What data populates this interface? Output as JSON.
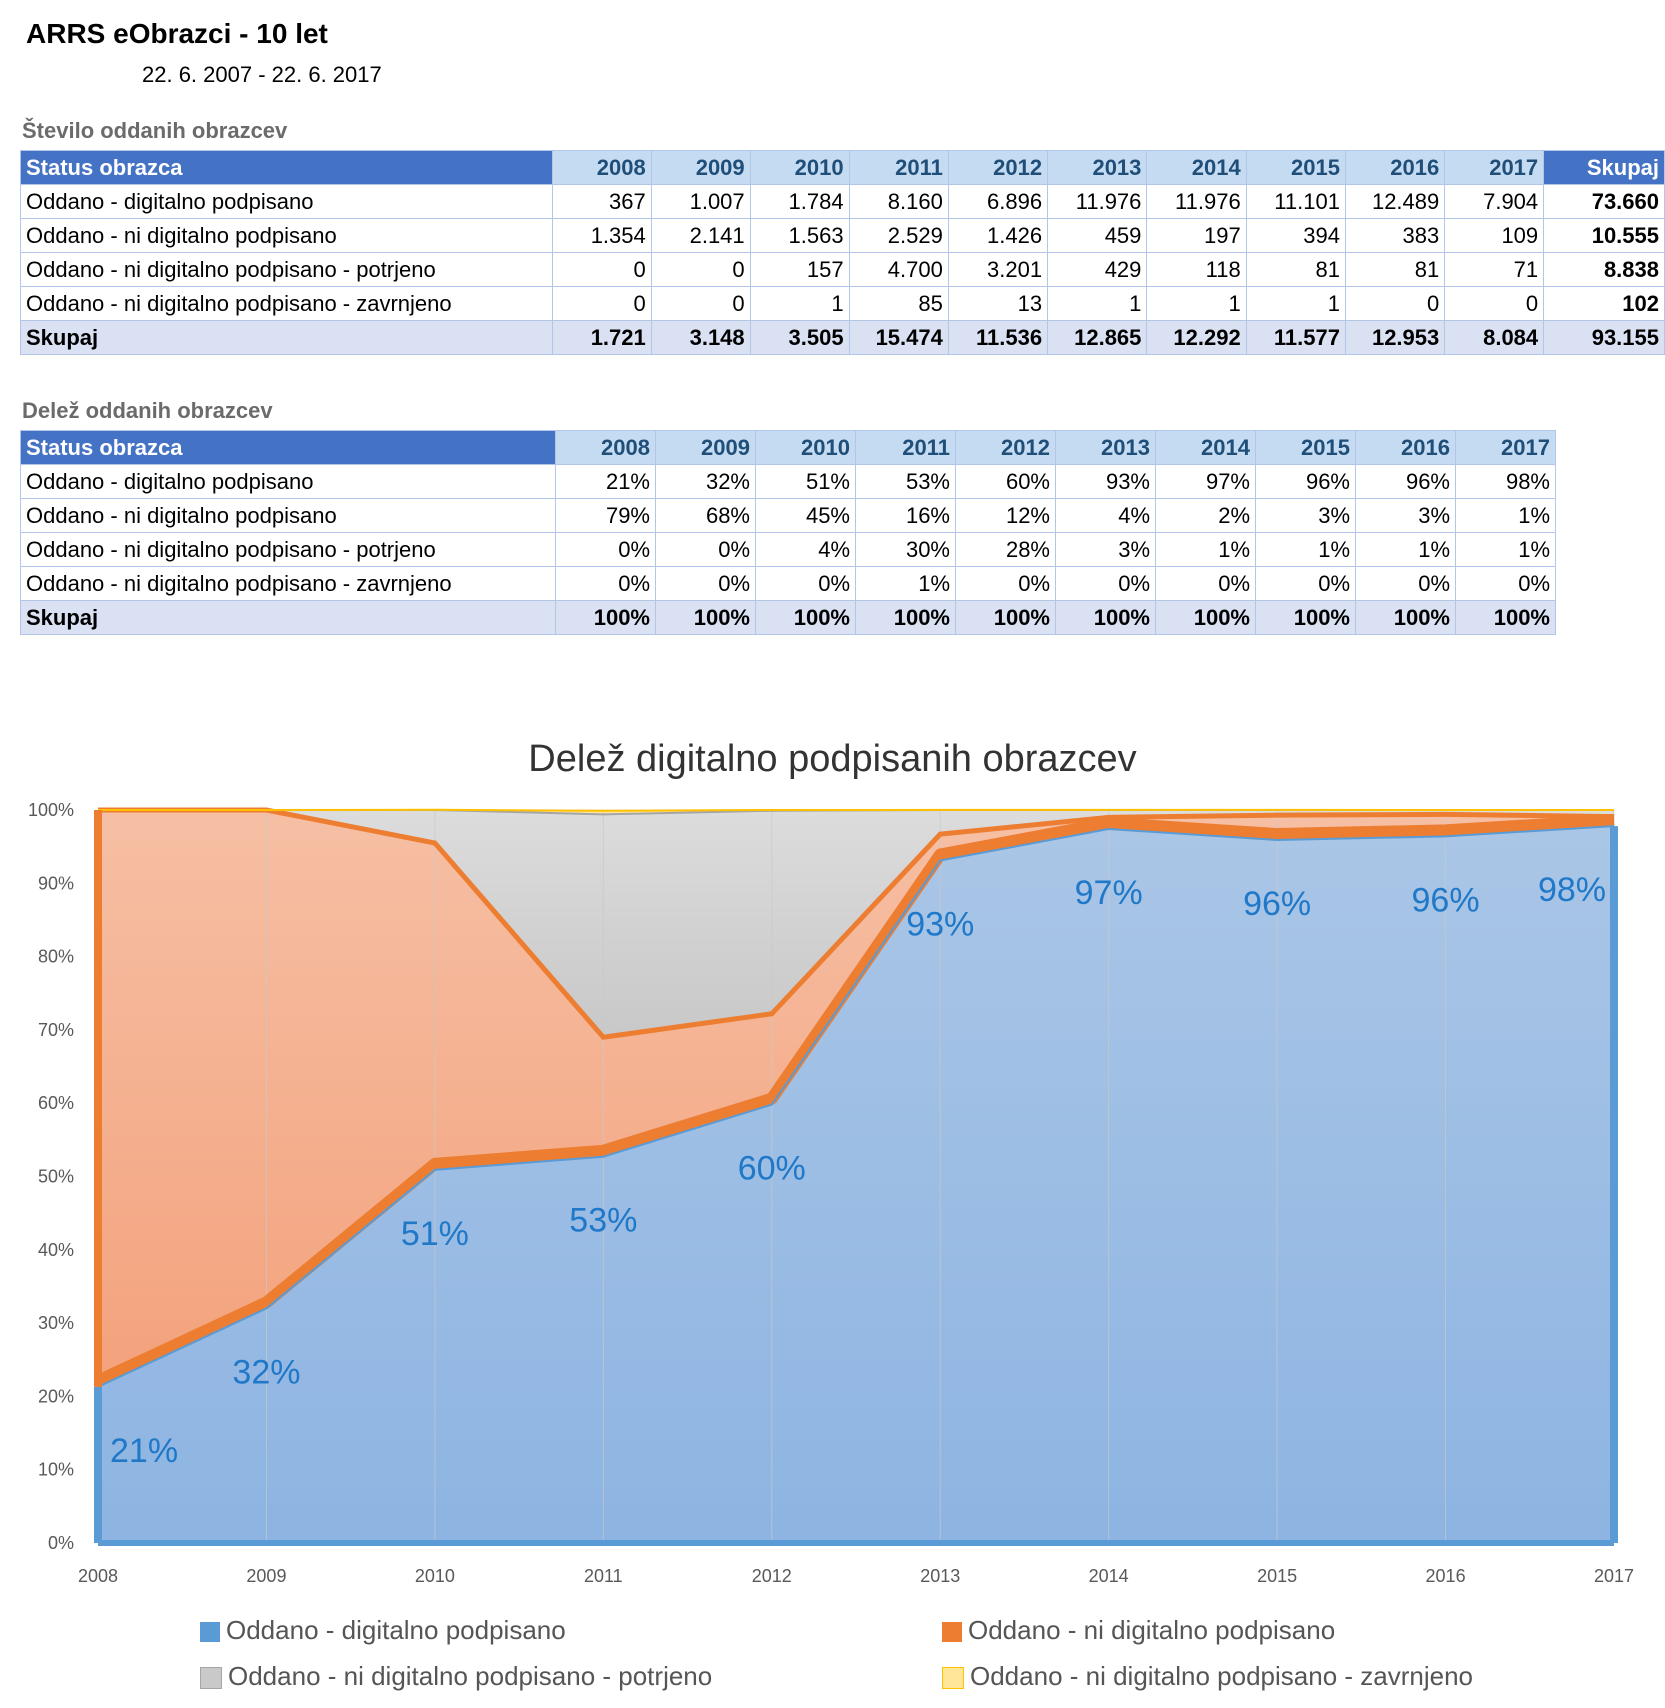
{
  "header": {
    "title": "ARRS eObrazci - 10 let",
    "subtitle": "22. 6. 2007 -  22. 6. 2017"
  },
  "count_table": {
    "caption": "Število oddanih obrazcev",
    "head": [
      "Status obrazca",
      "2008",
      "2009",
      "2010",
      "2011",
      "2012",
      "2013",
      "2014",
      "2015",
      "2016",
      "2017",
      "Skupaj"
    ],
    "rows": [
      [
        "Oddano - digitalno podpisano",
        "367",
        "1.007",
        "1.784",
        "8.160",
        "6.896",
        "11.976",
        "11.976",
        "11.101",
        "12.489",
        "7.904",
        "73.660"
      ],
      [
        "Oddano - ni digitalno podpisano",
        "1.354",
        "2.141",
        "1.563",
        "2.529",
        "1.426",
        "459",
        "197",
        "394",
        "383",
        "109",
        "10.555"
      ],
      [
        "Oddano - ni digitalno podpisano - potrjeno",
        "0",
        "0",
        "157",
        "4.700",
        "3.201",
        "429",
        "118",
        "81",
        "81",
        "71",
        "8.838"
      ],
      [
        "Oddano - ni digitalno podpisano - zavrnjeno",
        "0",
        "0",
        "1",
        "85",
        "13",
        "1",
        "1",
        "1",
        "0",
        "0",
        "102"
      ]
    ],
    "total": [
      "Skupaj",
      "1.721",
      "3.148",
      "3.505",
      "15.474",
      "11.536",
      "12.865",
      "12.292",
      "11.577",
      "12.953",
      "8.084",
      "93.155"
    ]
  },
  "share_table": {
    "caption": "Delež oddanih obrazcev",
    "head": [
      "Status obrazca",
      "2008",
      "2009",
      "2010",
      "2011",
      "2012",
      "2013",
      "2014",
      "2015",
      "2016",
      "2017"
    ],
    "rows": [
      [
        "Oddano - digitalno podpisano",
        "21%",
        "32%",
        "51%",
        "53%",
        "60%",
        "93%",
        "97%",
        "96%",
        "96%",
        "98%"
      ],
      [
        "Oddano - ni digitalno podpisano",
        "79%",
        "68%",
        "45%",
        "16%",
        "12%",
        "4%",
        "2%",
        "3%",
        "3%",
        "1%"
      ],
      [
        "Oddano - ni digitalno podpisano - potrjeno",
        "0%",
        "0%",
        "4%",
        "30%",
        "28%",
        "3%",
        "1%",
        "1%",
        "1%",
        "1%"
      ],
      [
        "Oddano - ni digitalno podpisano - zavrnjeno",
        "0%",
        "0%",
        "0%",
        "1%",
        "0%",
        "0%",
        "0%",
        "0%",
        "0%",
        "0%"
      ]
    ],
    "total": [
      "Skupaj",
      "100%",
      "100%",
      "100%",
      "100%",
      "100%",
      "100%",
      "100%",
      "100%",
      "100%",
      "100%"
    ]
  },
  "chart_data": {
    "type": "area",
    "stacked": true,
    "title": "Delež digitalno podpisanih obrazcev",
    "x": [
      "2008",
      "2009",
      "2010",
      "2011",
      "2012",
      "2013",
      "2014",
      "2015",
      "2016",
      "2017"
    ],
    "ylim": [
      0,
      100
    ],
    "yticks": [
      "0%",
      "10%",
      "20%",
      "30%",
      "40%",
      "50%",
      "60%",
      "70%",
      "80%",
      "90%",
      "100%"
    ],
    "grid": true,
    "legend_position": "bottom",
    "series": [
      {
        "name": "Oddano - digitalno podpisano",
        "color": "#5b9bd5",
        "values": [
          21.3,
          32.0,
          50.9,
          52.7,
          59.8,
          93.1,
          97.4,
          95.9,
          96.4,
          97.8
        ]
      },
      {
        "name": "Oddano - ni digitalno podpisano",
        "color": "#ed7d31",
        "values": [
          78.7,
          68.0,
          44.6,
          16.3,
          12.4,
          3.6,
          1.6,
          3.4,
          3.0,
          1.3
        ]
      },
      {
        "name": "Oddano - ni digitalno podpisano - potrjeno",
        "color": "#a5a5a5",
        "values": [
          0,
          0,
          4.5,
          30.4,
          27.7,
          3.3,
          1.0,
          0.7,
          0.6,
          0.9
        ]
      },
      {
        "name": "Oddano - ni digitalno podpisano - zavrnjeno",
        "color": "#ffc000",
        "values": [
          0,
          0,
          0.03,
          0.5,
          0.1,
          0.01,
          0.01,
          0.01,
          0,
          0
        ]
      }
    ],
    "data_labels": [
      "21%",
      "32%",
      "51%",
      "53%",
      "60%",
      "93%",
      "97%",
      "96%",
      "96%",
      "98%"
    ]
  }
}
